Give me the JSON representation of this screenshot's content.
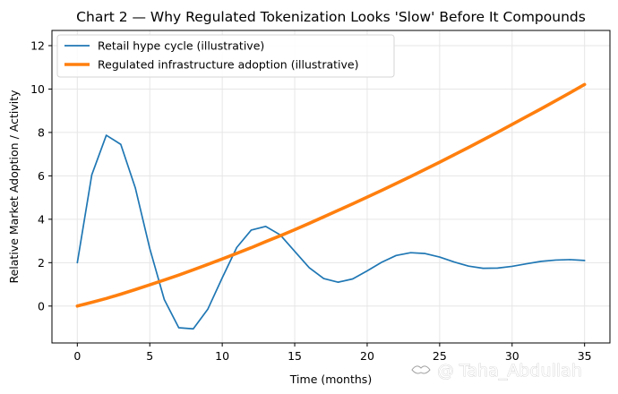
{
  "chart_data": {
    "type": "line",
    "title": "Chart 2 — Why Regulated Tokenization Looks 'Slow' Before It Compounds",
    "xlabel": "Time (months)",
    "ylabel": "Relative Market Adoption / Activity",
    "xlim": [
      -1.75,
      36.75
    ],
    "ylim": [
      -1.7,
      12.7
    ],
    "xticks": [
      0,
      5,
      10,
      15,
      20,
      25,
      30,
      35
    ],
    "yticks": [
      0,
      2,
      4,
      6,
      8,
      10,
      12
    ],
    "grid": true,
    "legend_position": "top-left",
    "x": [
      0,
      1,
      2,
      3,
      4,
      5,
      6,
      7,
      8,
      9,
      10,
      11,
      12,
      13,
      14,
      15,
      16,
      17,
      18,
      19,
      20,
      21,
      22,
      23,
      24,
      25,
      26,
      27,
      28,
      29,
      30,
      31,
      32,
      33,
      34,
      35
    ],
    "series": [
      {
        "name": "Retail hype cycle (illustrative)",
        "color": "#1f77b4",
        "linewidth": "thin",
        "values": [
          2.0,
          6.05,
          7.87,
          7.45,
          5.45,
          2.65,
          0.3,
          -1.0,
          -1.05,
          -0.15,
          1.3,
          2.7,
          3.5,
          3.67,
          3.28,
          2.52,
          1.77,
          1.27,
          1.1,
          1.25,
          1.62,
          2.02,
          2.33,
          2.46,
          2.42,
          2.26,
          2.03,
          1.84,
          1.74,
          1.75,
          1.83,
          1.95,
          2.06,
          2.12,
          2.14,
          2.1
        ]
      },
      {
        "name": "Regulated infrastructure adoption (illustrative)",
        "color": "#ff7f0e",
        "linewidth": "thick",
        "values": [
          0.0,
          0.17,
          0.35,
          0.55,
          0.76,
          0.98,
          1.2,
          1.43,
          1.67,
          1.92,
          2.17,
          2.43,
          2.69,
          2.97,
          3.24,
          3.52,
          3.81,
          4.11,
          4.41,
          4.71,
          5.02,
          5.33,
          5.65,
          5.97,
          6.3,
          6.63,
          6.97,
          7.31,
          7.66,
          8.01,
          8.37,
          8.73,
          9.09,
          9.46,
          9.83,
          10.21
        ]
      }
    ]
  },
  "watermark": {
    "icon": "handshake-logo-icon",
    "text": "@ Taha_Abdullah"
  }
}
